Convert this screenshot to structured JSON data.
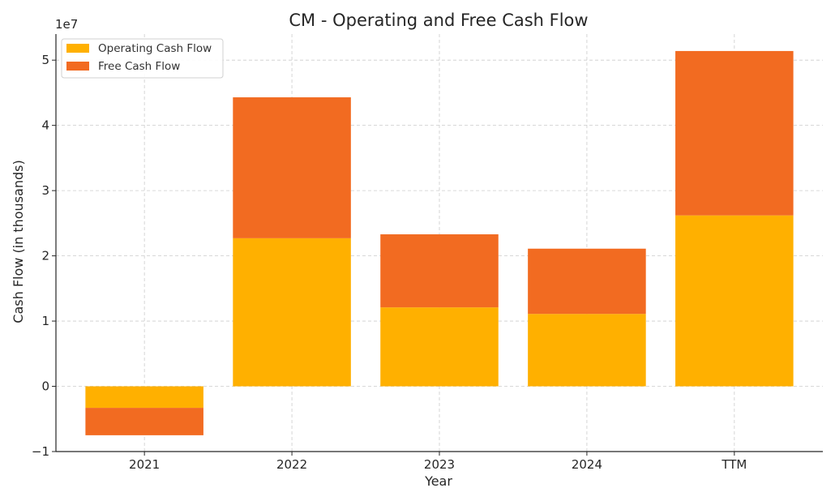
{
  "chart_data": {
    "type": "bar",
    "stacked": true,
    "title": "CM - Operating and Free Cash Flow",
    "xlabel": "Year",
    "ylabel": "Cash Flow (in thousands)",
    "offset_text": "1e7",
    "categories": [
      "2021",
      "2022",
      "2023",
      "2024",
      "TTM"
    ],
    "series": [
      {
        "name": "Operating Cash Flow",
        "color": "#FFB000",
        "values": [
          -3300000,
          22700000,
          12100000,
          11100000,
          26200000
        ]
      },
      {
        "name": "Free Cash Flow",
        "color": "#F26B21",
        "values": [
          -4200000,
          21600000,
          11200000,
          10000000,
          25200000
        ]
      }
    ],
    "ylim": [
      -10000000.0,
      54000000.0
    ],
    "yticks": [
      -10000000,
      0,
      10000000,
      20000000,
      30000000,
      40000000,
      50000000
    ],
    "ytick_labels": [
      "−1",
      "0",
      "1",
      "2",
      "3",
      "4",
      "5"
    ],
    "grid": true,
    "legend_position": "top-left"
  }
}
